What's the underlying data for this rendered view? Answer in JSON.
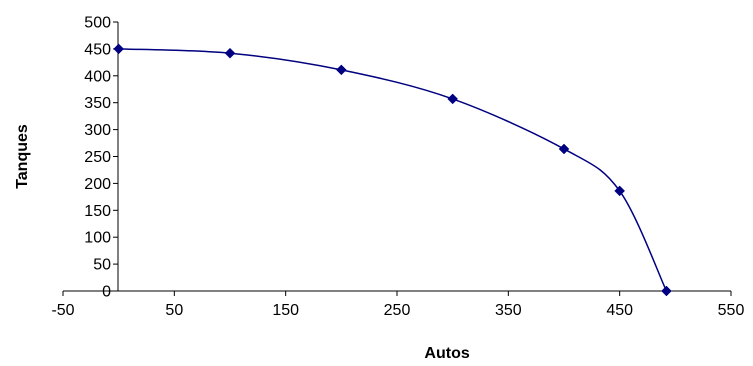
{
  "chart_data": {
    "type": "scatter",
    "title": "",
    "xlabel": "Autos",
    "ylabel": "Tanques",
    "xlim": [
      -50,
      550
    ],
    "ylim": [
      0,
      500
    ],
    "xticks": [
      -50,
      50,
      150,
      250,
      350,
      450,
      550
    ],
    "yticks": [
      0,
      50,
      100,
      150,
      200,
      250,
      300,
      350,
      400,
      450,
      500
    ],
    "grid": false,
    "legend": "none",
    "smooth_line": true,
    "series": [
      {
        "color": "#000080",
        "marker": "diamond",
        "points": [
          {
            "x": 0,
            "y": 450
          },
          {
            "x": 100,
            "y": 442
          },
          {
            "x": 200,
            "y": 411
          },
          {
            "x": 300,
            "y": 357
          },
          {
            "x": 400,
            "y": 264
          },
          {
            "x": 450,
            "y": 186
          },
          {
            "x": 492,
            "y": 0
          }
        ]
      }
    ]
  }
}
